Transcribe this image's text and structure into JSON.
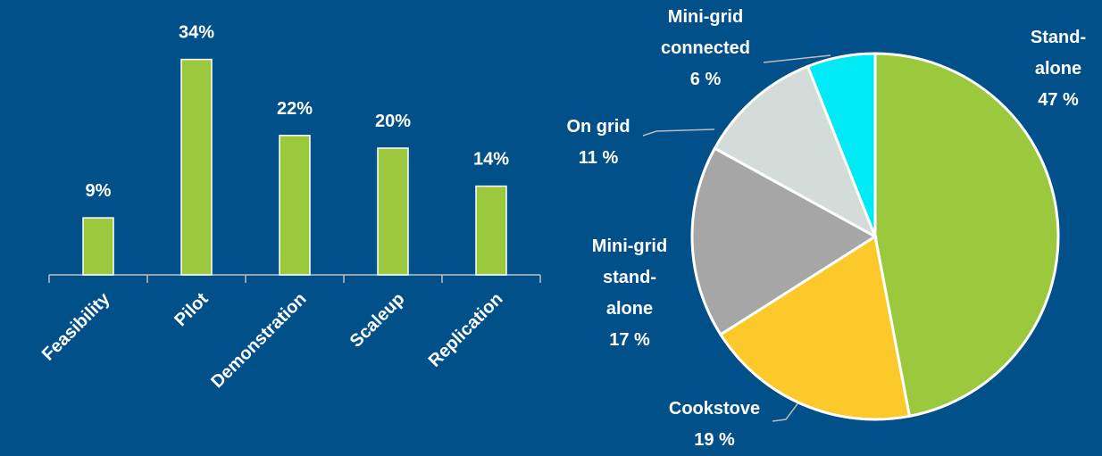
{
  "chart_data": [
    {
      "type": "bar",
      "categories": [
        "Feasibility",
        "Pilot",
        "Demonstration",
        "Scaleup",
        "Replication"
      ],
      "values": [
        9,
        34,
        22,
        20,
        14
      ],
      "value_labels": [
        "9%",
        "34%",
        "22%",
        "20%",
        "14%"
      ],
      "color": "#9bc83c"
    },
    {
      "type": "pie",
      "categories": [
        "Stand-alone",
        "Cookstove",
        "Mini-grid stand-alone",
        "On grid",
        "Mini-grid connected"
      ],
      "values": [
        47,
        19,
        17,
        11,
        6
      ],
      "value_labels": [
        "47 %",
        "19 %",
        "17 %",
        "11 %",
        "6 %"
      ],
      "colors": [
        "#9bc83c",
        "#fcc92b",
        "#a6a6a6",
        "#d3dcd8",
        "#00eaf6"
      ]
    }
  ]
}
